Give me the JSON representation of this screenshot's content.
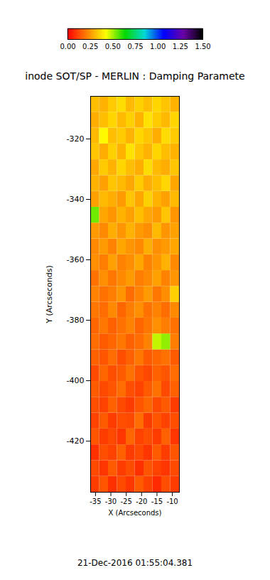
{
  "chart_data": {
    "type": "heatmap",
    "title": "inode SOT/SP - MERLIN : Damping Paramete",
    "xlabel": "X (Arcseconds)",
    "ylabel": "Y (Arcseconds)",
    "caption": "21-Dec-2016 01:55:04.381",
    "xlim": [
      -36.6,
      -7.7
    ],
    "ylim": [
      -436.9,
      -305.9
    ],
    "xticks": [
      -35,
      -30,
      -25,
      -20,
      -15,
      -10
    ],
    "yticks": [
      -320,
      -340,
      -360,
      -380,
      -400,
      -420
    ],
    "x_edges": [
      -36.6,
      -33.71,
      -30.82,
      -27.93,
      -25.04,
      -22.15,
      -19.26,
      -16.37,
      -13.48,
      -10.59,
      -7.7
    ],
    "y_edges": [
      -436.9,
      -431.66,
      -426.42,
      -421.18,
      -415.94,
      -410.7,
      -405.46,
      -400.22,
      -394.98,
      -389.74,
      -384.5,
      -379.26,
      -374.02,
      -368.78,
      -363.54,
      -358.3,
      -353.06,
      -347.82,
      -342.58,
      -337.34,
      -332.1,
      -326.86,
      -321.62,
      -316.38,
      -311.14,
      -305.9
    ],
    "values": [
      [
        0.1,
        0.14,
        0.08,
        0.12,
        0.09,
        0.15,
        0.11,
        0.07,
        0.13,
        0.1
      ],
      [
        0.12,
        0.09,
        0.15,
        0.1,
        0.13,
        0.08,
        0.14,
        0.11,
        0.09,
        0.12
      ],
      [
        0.08,
        0.13,
        0.11,
        0.16,
        0.1,
        0.12,
        0.09,
        0.15,
        0.1,
        0.14
      ],
      [
        0.14,
        0.1,
        0.12,
        0.09,
        0.17,
        0.11,
        0.13,
        0.1,
        0.16,
        0.09
      ],
      [
        0.11,
        0.15,
        0.1,
        0.13,
        0.12,
        0.18,
        0.1,
        0.14,
        0.11,
        0.13
      ],
      [
        0.13,
        0.11,
        0.16,
        0.12,
        0.1,
        0.14,
        0.17,
        0.12,
        0.15,
        0.1
      ],
      [
        0.15,
        0.12,
        0.14,
        0.18,
        0.13,
        0.11,
        0.15,
        0.19,
        0.12,
        0.16
      ],
      [
        0.12,
        0.17,
        0.13,
        0.15,
        0.19,
        0.14,
        0.12,
        0.16,
        0.14,
        0.18
      ],
      [
        0.16,
        0.14,
        0.18,
        0.13,
        0.16,
        0.2,
        0.15,
        0.17,
        0.19,
        0.15
      ],
      [
        0.18,
        0.15,
        0.17,
        0.2,
        0.16,
        0.18,
        0.22,
        0.48,
        0.52,
        0.21
      ],
      [
        0.17,
        0.2,
        0.16,
        0.19,
        0.22,
        0.17,
        0.2,
        0.24,
        0.21,
        0.19
      ],
      [
        0.2,
        0.18,
        0.23,
        0.17,
        0.21,
        0.24,
        0.19,
        0.22,
        0.18,
        0.23
      ],
      [
        0.22,
        0.19,
        0.21,
        0.25,
        0.18,
        0.22,
        0.26,
        0.2,
        0.24,
        0.35
      ],
      [
        0.19,
        0.24,
        0.2,
        0.23,
        0.26,
        0.21,
        0.23,
        0.27,
        0.22,
        0.25
      ],
      [
        0.24,
        0.21,
        0.27,
        0.22,
        0.24,
        0.28,
        0.22,
        0.25,
        0.3,
        0.23
      ],
      [
        0.23,
        0.26,
        0.22,
        0.28,
        0.25,
        0.23,
        0.29,
        0.24,
        0.26,
        0.28
      ],
      [
        0.26,
        0.23,
        0.29,
        0.25,
        0.3,
        0.26,
        0.24,
        0.31,
        0.25,
        0.27
      ],
      [
        0.55,
        0.28,
        0.25,
        0.3,
        0.27,
        0.32,
        0.28,
        0.26,
        0.33,
        0.25
      ],
      [
        0.27,
        0.31,
        0.29,
        0.26,
        0.33,
        0.28,
        0.35,
        0.3,
        0.27,
        0.31
      ],
      [
        0.3,
        0.27,
        0.33,
        0.31,
        0.28,
        0.34,
        0.29,
        0.32,
        0.36,
        0.28
      ],
      [
        0.28,
        0.34,
        0.3,
        0.36,
        0.32,
        0.29,
        0.37,
        0.31,
        0.29,
        0.33
      ],
      [
        0.33,
        0.29,
        0.35,
        0.3,
        0.38,
        0.33,
        0.3,
        0.36,
        0.32,
        0.3
      ],
      [
        0.31,
        0.42,
        0.32,
        0.34,
        0.3,
        0.36,
        0.33,
        0.29,
        0.37,
        0.34
      ],
      [
        0.29,
        0.32,
        0.36,
        0.31,
        0.35,
        0.3,
        0.38,
        0.34,
        0.31,
        0.36
      ],
      [
        0.32,
        0.3,
        0.34,
        0.37,
        0.31,
        0.35,
        0.32,
        0.36,
        0.33,
        0.3
      ]
    ],
    "colorbar": {
      "range": [
        0,
        1.5
      ],
      "ticks": [
        {
          "value": 0,
          "label": "0.00"
        },
        {
          "value": 0.25,
          "label": "0.25"
        },
        {
          "value": 0.5,
          "label": "0.50"
        },
        {
          "value": 0.75,
          "label": "0.75"
        },
        {
          "value": 1,
          "label": "1.00"
        },
        {
          "value": 1.25,
          "label": "1.25"
        },
        {
          "value": 1.5,
          "label": "1.50"
        }
      ]
    }
  }
}
